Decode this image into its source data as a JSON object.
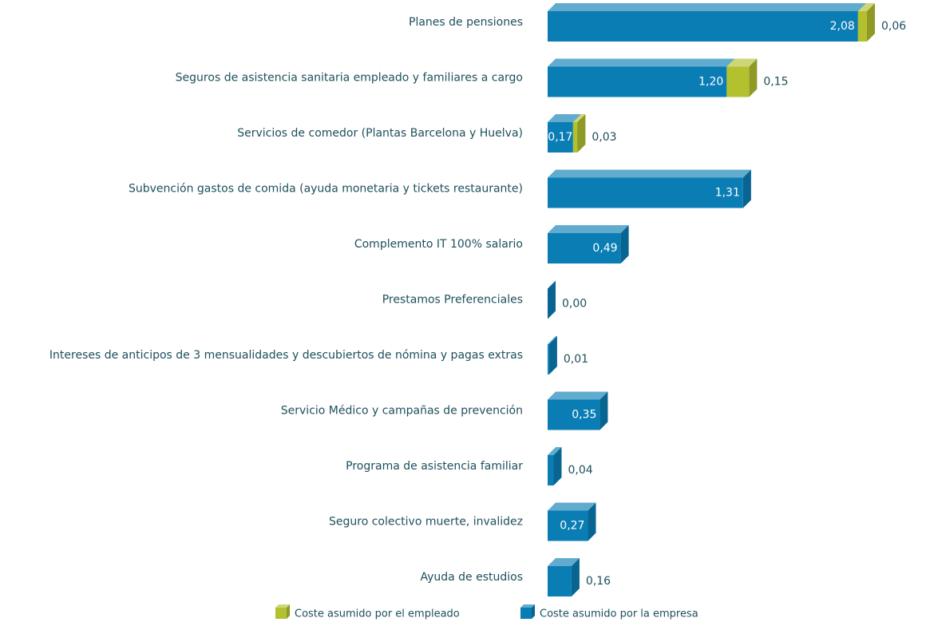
{
  "chart_data": {
    "type": "bar",
    "orientation": "horizontal",
    "stacked": true,
    "categories": [
      "Planes de pensiones",
      "Seguros de asistencia sanitaria empleado y familiares a cargo",
      "Servicios de comedor (Plantas Barcelona y Huelva)",
      "Subvención gastos de comida (ayuda monetaria y tickets restaurante)",
      "Complemento IT 100% salario",
      "Prestamos Preferenciales",
      "Intereses de anticipos de 3 mensualidades y descubiertos de nómina y pagas extras",
      "Servicio Médico y campañas de prevención",
      "Programa de asistencia familiar",
      "Seguro colectivo muerte, invalidez",
      "Ayuda de estudios"
    ],
    "series": [
      {
        "name": "Coste asumido por la  empresa",
        "color": "#0a7db4",
        "values": [
          2.08,
          1.2,
          0.17,
          1.31,
          0.49,
          0.0,
          0.01,
          0.35,
          0.04,
          0.27,
          0.16
        ],
        "value_labels": [
          "2,08",
          "1,20",
          "0,17",
          "1,31",
          "0,49",
          "0,00",
          "0,01",
          "0,35",
          "0,04",
          "0,27",
          "0,16"
        ]
      },
      {
        "name": "Coste asumido por el empleado",
        "color": "#b3c12f",
        "values": [
          0.06,
          0.15,
          0.03,
          null,
          null,
          null,
          null,
          null,
          null,
          null,
          null
        ],
        "value_labels": [
          "0,06",
          "0,15",
          "0,03",
          null,
          null,
          null,
          null,
          null,
          null,
          null,
          null
        ]
      }
    ],
    "legend": "bottom"
  }
}
